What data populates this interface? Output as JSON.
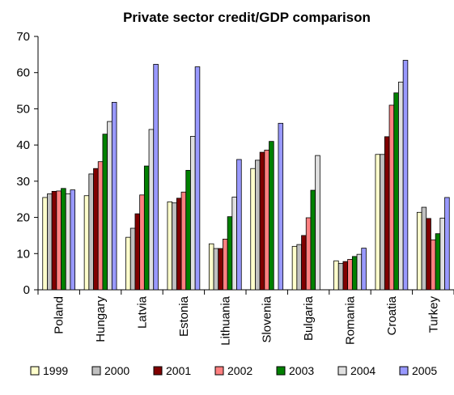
{
  "chart_data": {
    "type": "bar",
    "title": "Private sector credit/GDP comparison",
    "xlabel": "",
    "ylabel": "",
    "ylim": [
      0,
      70
    ],
    "yticks": [
      0,
      10,
      20,
      30,
      40,
      50,
      60,
      70
    ],
    "grid": false,
    "legend_position": "bottom",
    "categories": [
      "Poland",
      "Hungary",
      "Latvia",
      "Estonia",
      "Lithuania",
      "Slovenia",
      "Bulgaria",
      "Romania",
      "Croatia",
      "Turkey"
    ],
    "series": [
      {
        "name": "1999",
        "color": "#FFFFCC",
        "values": [
          25.5,
          26,
          14.5,
          24.3,
          12.7,
          33.5,
          12,
          8,
          37.4,
          21.4
        ]
      },
      {
        "name": "2000",
        "color": "#C0C0C0",
        "values": [
          26.5,
          32,
          17,
          24,
          11.4,
          35.8,
          12.5,
          7.3,
          37.4,
          22.8
        ]
      },
      {
        "name": "2001",
        "color": "#800000",
        "values": [
          27.2,
          33.5,
          21,
          25.3,
          11.4,
          38,
          15,
          7.8,
          42.3,
          19.7
        ]
      },
      {
        "name": "2002",
        "color": "#FF8080",
        "values": [
          27.3,
          35.4,
          26.2,
          27,
          14,
          38.6,
          19.9,
          8.4,
          51,
          13.8
        ]
      },
      {
        "name": "2003",
        "color": "#008000",
        "values": [
          28,
          43,
          34.2,
          33,
          20.2,
          41,
          27.5,
          9.2,
          54.4,
          15.5
        ]
      },
      {
        "name": "2004",
        "color": "#E0E0E0",
        "values": [
          26.5,
          46.5,
          44.3,
          42.4,
          25.6,
          null,
          37.1,
          9.8,
          57.4,
          19.8
        ]
      },
      {
        "name": "2005",
        "color": "#9999FF",
        "values": [
          27.6,
          51.8,
          62.3,
          61.6,
          36,
          46,
          null,
          11.5,
          63.4,
          25.5
        ]
      }
    ]
  }
}
